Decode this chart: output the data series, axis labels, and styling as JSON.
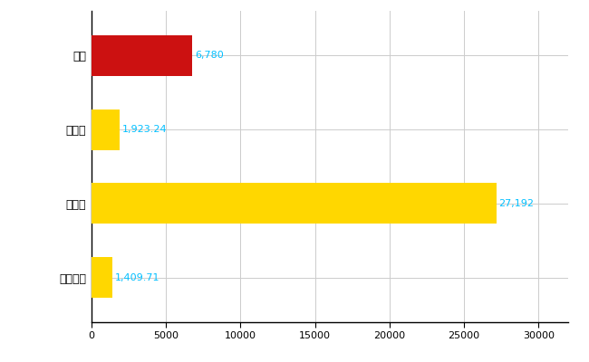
{
  "categories": [
    "全国平均",
    "県最大",
    "県平均",
    "東区"
  ],
  "values": [
    1409.71,
    27192,
    1923.24,
    6780
  ],
  "bar_colors": [
    "#FFD700",
    "#FFD700",
    "#FFD700",
    "#CC1111"
  ],
  "value_labels": [
    "1,409.71",
    "27,192",
    "1,923.24",
    "6,780"
  ],
  "xlim": [
    0,
    32000
  ],
  "xticks": [
    0,
    5000,
    10000,
    15000,
    20000,
    25000,
    30000
  ],
  "xtick_labels": [
    "0",
    "5000",
    "10000",
    "15000",
    "20000",
    "25000",
    "30000"
  ],
  "bar_height": 0.55,
  "grid_color": "#CCCCCC",
  "background_color": "#FFFFFF",
  "label_color": "#00BFFF",
  "label_fontsize": 8,
  "tick_fontsize": 8,
  "ytick_fontsize": 9
}
